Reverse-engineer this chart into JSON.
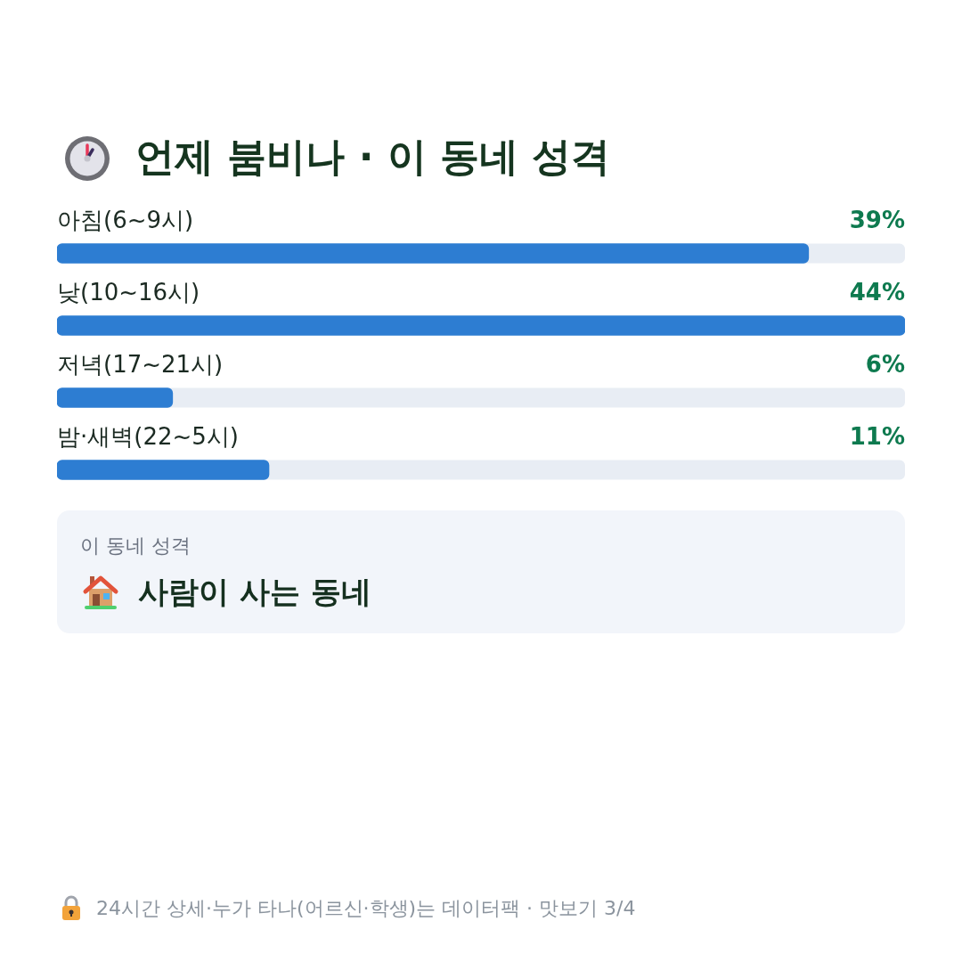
{
  "chart_data": [
    {
      "type": "bar",
      "orientation": "horizontal",
      "title": "언제 붐비나 · 이 동네 성격",
      "categories": [
        "아침(6~9시)",
        "낮(10~16시)",
        "저녁(17~21시)",
        "밤·새벽(22~5시)"
      ],
      "values": [
        39,
        44,
        6,
        11
      ],
      "value_labels": [
        "39%",
        "44%",
        "6%",
        "11%"
      ],
      "color": "#2d7dd2",
      "xlim": [
        0,
        44
      ],
      "tick_labels": "y",
      "annotations": [
        "24시간 상세·누가 타나(어르신·학생)는 데이터팩 · 맛보기 3/4"
      ]
    },
    {
      "type": "other",
      "title": "이 동네 성격",
      "annotations": [
        "사람이 사는 동네"
      ]
    }
  ]
}
